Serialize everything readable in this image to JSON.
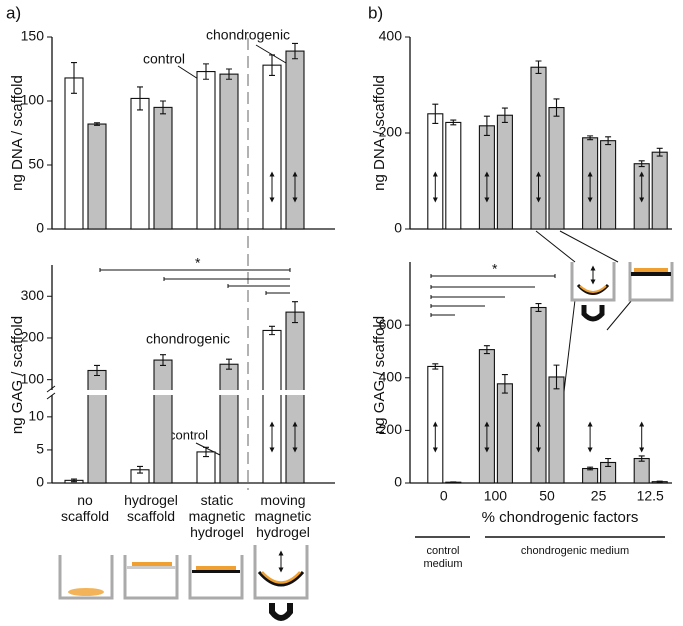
{
  "chart_data": [
    {
      "type": "bar",
      "panel_label": "a)",
      "ylabel": "ng DNA / scaffold",
      "ylim": [
        0,
        150
      ],
      "yticks": [
        0,
        50,
        100,
        150
      ],
      "annotations": [
        "control",
        "chondrogenic"
      ],
      "series": [
        {
          "color": "#ffffff",
          "values": [
            118,
            102,
            123,
            128
          ],
          "errors": [
            12,
            9,
            6,
            8
          ]
        },
        {
          "color": "#c0c0c0",
          "values": [
            82,
            95,
            121,
            139
          ],
          "errors": [
            1,
            5,
            4,
            6
          ]
        }
      ]
    },
    {
      "type": "bar",
      "ylabel": "ng GAG / scaffold",
      "categories": [
        "no scaffold",
        "hydrogel scaffold",
        "static magnetic hydrogel",
        "moving magnetic hydrogel"
      ],
      "ylim": [
        0,
        375
      ],
      "ybreak": [
        13,
        80
      ],
      "yticks": [
        0,
        5,
        10,
        100,
        200,
        300
      ],
      "annotations": [
        "chondrogenic",
        "control"
      ],
      "significance_label": "*",
      "series": [
        {
          "color": "#ffffff",
          "values": [
            0.4,
            2,
            4.7,
            218
          ],
          "errors": [
            0.2,
            0.5,
            0.7,
            10
          ]
        },
        {
          "color": "#c0c0c0",
          "values": [
            122,
            147,
            137,
            262
          ],
          "errors": [
            12,
            13,
            12,
            25
          ]
        }
      ]
    },
    {
      "type": "bar",
      "panel_label": "b)",
      "ylabel": "ng DNA / scaffold",
      "ylim": [
        0,
        400
      ],
      "yticks": [
        0,
        200,
        400
      ],
      "series": [
        {
          "colors": [
            "#ffffff",
            "#c0c0c0",
            "#c0c0c0",
            "#c0c0c0",
            "#c0c0c0"
          ],
          "values": [
            240,
            215,
            337,
            190,
            136
          ],
          "errors": [
            20,
            20,
            13,
            4,
            6
          ]
        },
        {
          "colors": [
            "#ffffff",
            "#c0c0c0",
            "#c0c0c0",
            "#c0c0c0",
            "#c0c0c0"
          ],
          "values": [
            222,
            237,
            253,
            184,
            160
          ],
          "errors": [
            5,
            15,
            18,
            8,
            8
          ]
        }
      ]
    },
    {
      "type": "bar",
      "ylabel": "ng GAG / scaffold",
      "xlabel": "% chondrogenic factors",
      "categories": [
        "0",
        "100",
        "50",
        "25",
        "12.5"
      ],
      "ylim": [
        0,
        840
      ],
      "yticks": [
        0,
        200,
        400,
        600
      ],
      "significance_label": "*",
      "groups": [
        "control medium",
        "chondrogenic medium"
      ],
      "series": [
        {
          "colors": [
            "#ffffff",
            "#c0c0c0",
            "#c0c0c0",
            "#c0c0c0",
            "#c0c0c0"
          ],
          "values": [
            443,
            507,
            667,
            55,
            93
          ],
          "errors": [
            10,
            15,
            15,
            5,
            10
          ]
        },
        {
          "colors": [
            "#ffffff",
            "#c0c0c0",
            "#c0c0c0",
            "#c0c0c0",
            "#c0c0c0"
          ],
          "values": [
            3,
            377,
            403,
            78,
            5
          ],
          "errors": [
            1,
            35,
            45,
            15,
            2
          ]
        }
      ]
    }
  ]
}
